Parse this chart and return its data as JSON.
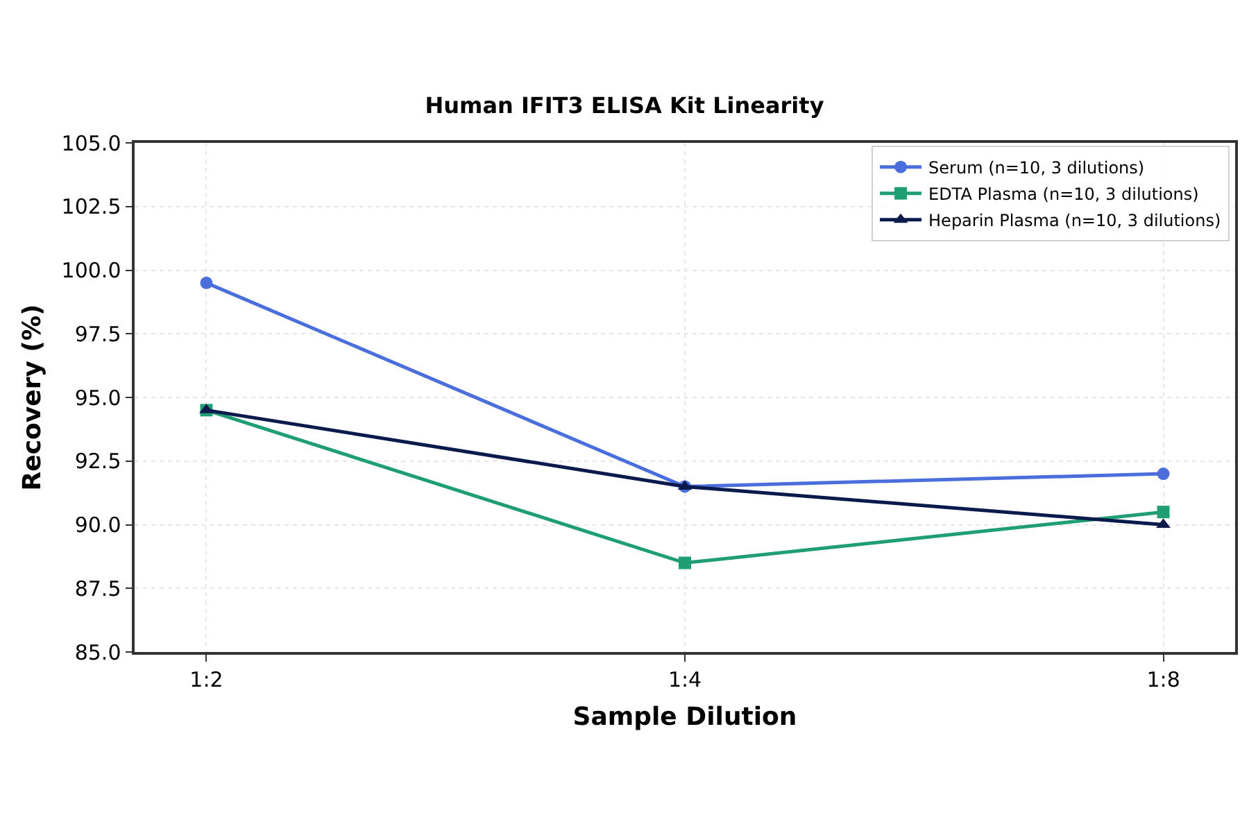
{
  "chart_data": {
    "type": "line",
    "title": "Human IFIT3 ELISA Kit Linearity",
    "xlabel": "Sample Dilution",
    "ylabel": "Recovery (%)",
    "categories": [
      "1:2",
      "1:4",
      "1:8"
    ],
    "series": [
      {
        "name": "Serum (n=10, 3 dilutions)",
        "color": "#4a6fdc",
        "marker": "circle",
        "values": [
          99.5,
          91.5,
          92.0
        ]
      },
      {
        "name": "EDTA Plasma (n=10, 3 dilutions)",
        "color": "#1f9e74",
        "marker": "square",
        "values": [
          94.5,
          88.5,
          90.5
        ]
      },
      {
        "name": "Heparin Plasma (n=10, 3 dilutions)",
        "color": "#0b1a4c",
        "marker": "triangle",
        "values": [
          94.5,
          91.5,
          90.0
        ]
      }
    ],
    "ylim": [
      85.0,
      105.0
    ],
    "yticks": [
      {
        "value": 85,
        "label": "85.0"
      },
      {
        "value": 87.5,
        "label": "87.5"
      },
      {
        "value": 90,
        "label": "90.0"
      },
      {
        "value": 92.5,
        "label": "92.5"
      },
      {
        "value": 95,
        "label": "95.0"
      },
      {
        "value": 97.5,
        "label": "97.5"
      },
      {
        "value": 100,
        "label": "100.0"
      },
      {
        "value": 102.5,
        "label": "102.5"
      },
      {
        "value": 105,
        "label": "105.0"
      }
    ],
    "grid": true,
    "legend": "top right",
    "line_style": "solid"
  }
}
